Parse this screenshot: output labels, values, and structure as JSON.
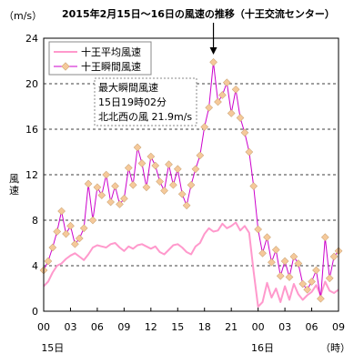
{
  "chart_data": {
    "type": "line",
    "title": "2015年2月15日～16日の風速の推移（十王交流センター）",
    "y_unit_label": "（m/s）",
    "ylabel": "風速",
    "ylim": [
      0,
      24
    ],
    "y_ticks": [
      0,
      4,
      8,
      12,
      16,
      20,
      24
    ],
    "x_unit": "hours",
    "xlim": [
      0,
      33
    ],
    "x_ticks": [
      {
        "hour": 0,
        "label": "00"
      },
      {
        "hour": 3,
        "label": "03"
      },
      {
        "hour": 6,
        "label": "06"
      },
      {
        "hour": 9,
        "label": "09"
      },
      {
        "hour": 12,
        "label": "12"
      },
      {
        "hour": 15,
        "label": "15"
      },
      {
        "hour": 18,
        "label": "18"
      },
      {
        "hour": 21,
        "label": "21"
      },
      {
        "hour": 24,
        "label": "00"
      },
      {
        "hour": 27,
        "label": "03"
      },
      {
        "hour": 30,
        "label": "06"
      },
      {
        "hour": 33,
        "label": "09"
      }
    ],
    "date_labels": [
      {
        "hour": 1,
        "label": "15日"
      },
      {
        "hour": 24.5,
        "label": "16日"
      }
    ],
    "x_suffix": "（時）",
    "grid": "horizontal-dashed",
    "legend_position": "top-left",
    "annotation": {
      "lines": [
        "最大瞬間風速",
        "15日19時02分",
        "北北西の風 21.9m/s"
      ],
      "arrow_hour": 19.0
    },
    "series": [
      {
        "name": "十王平均風速",
        "color": "#ff99cc",
        "x": [
          0,
          0.5,
          1,
          1.5,
          2,
          2.5,
          3,
          3.5,
          4,
          4.5,
          5,
          5.5,
          6,
          6.5,
          7,
          7.5,
          8,
          8.5,
          9,
          9.5,
          10,
          10.5,
          11,
          11.5,
          12,
          12.5,
          13,
          13.5,
          14,
          14.5,
          15,
          15.5,
          16,
          16.5,
          17,
          17.5,
          18,
          18.5,
          19,
          19.5,
          20,
          20.5,
          21,
          21.5,
          22,
          22.5,
          23,
          23.5,
          24,
          24.5,
          25,
          25.5,
          26,
          26.5,
          27,
          27.5,
          28,
          28.5,
          29,
          29.5,
          30,
          30.5,
          31,
          31.5,
          32,
          32.5,
          33
        ],
        "values": [
          2.2,
          2.6,
          3.4,
          4.0,
          4.2,
          4.6,
          4.9,
          5.1,
          4.8,
          4.5,
          5.0,
          5.6,
          5.8,
          5.7,
          5.6,
          5.9,
          6.0,
          5.6,
          5.3,
          5.7,
          5.5,
          5.8,
          5.9,
          5.7,
          5.5,
          5.7,
          5.2,
          5.0,
          5.4,
          5.8,
          5.9,
          5.6,
          5.2,
          5.0,
          5.7,
          6.0,
          6.8,
          7.3,
          7.0,
          7.1,
          7.7,
          7.3,
          7.5,
          7.8,
          7.1,
          7.5,
          6.9,
          3.5,
          0.4,
          0.8,
          2.5,
          1.2,
          2.0,
          0.8,
          2.2,
          1.0,
          2.4,
          1.5,
          1.0,
          1.4,
          1.7,
          2.3,
          1.4,
          2.6,
          1.8,
          1.6,
          1.9
        ]
      },
      {
        "name": "十王瞬間風速",
        "color": "#cc00cc",
        "marker_color": "#f5c99a",
        "x": [
          0,
          0.5,
          1,
          1.5,
          2,
          2.5,
          3,
          3.5,
          4,
          4.5,
          5,
          5.5,
          6,
          6.5,
          7,
          7.5,
          8,
          8.5,
          9,
          9.5,
          10,
          10.5,
          11,
          11.5,
          12,
          12.5,
          13,
          13.5,
          14,
          14.5,
          15,
          15.5,
          16,
          16.5,
          17,
          17.5,
          18,
          18.5,
          19,
          19.5,
          20,
          20.5,
          21,
          21.5,
          22,
          22.5,
          23,
          23.5,
          24,
          24.5,
          25,
          25.5,
          26,
          26.5,
          27,
          27.5,
          28,
          28.5,
          29,
          29.5,
          30,
          30.5,
          31,
          31.5,
          32,
          32.5,
          33
        ],
        "values": [
          3.6,
          4.4,
          5.6,
          7.0,
          8.8,
          6.8,
          7.5,
          5.9,
          6.4,
          7.3,
          11.2,
          8.0,
          10.9,
          10.2,
          12.0,
          9.6,
          11.0,
          9.4,
          9.9,
          12.6,
          11.1,
          14.4,
          13.0,
          10.9,
          13.6,
          12.8,
          11.4,
          10.6,
          12.9,
          11.1,
          12.5,
          10.3,
          9.3,
          11.1,
          12.5,
          13.7,
          16.2,
          17.9,
          21.9,
          18.4,
          19.0,
          20.1,
          17.4,
          19.5,
          17.0,
          15.7,
          14.0,
          11.0,
          7.2,
          5.1,
          6.5,
          4.3,
          5.4,
          3.1,
          4.4,
          3.0,
          4.8,
          4.2,
          2.4,
          1.9,
          2.6,
          3.6,
          1.1,
          6.5,
          2.9,
          4.8,
          5.3
        ]
      }
    ]
  }
}
